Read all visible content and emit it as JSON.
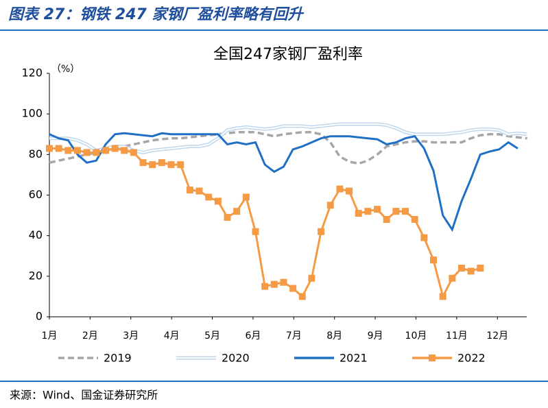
{
  "header": {
    "title": "图表 27：钢铁 247 家钢厂盈利率略有回升"
  },
  "chart_data": {
    "type": "line",
    "title": "全国247家钢厂盈利率",
    "y_label": "（%）",
    "x": [
      1,
      1.23,
      1.46,
      1.69,
      1.92,
      2.15,
      2.38,
      2.61,
      2.84,
      3.07,
      3.3,
      3.53,
      3.76,
      3.99,
      4.22,
      4.45,
      4.68,
      4.91,
      5.14,
      5.37,
      5.6,
      5.83,
      6.06,
      6.29,
      6.52,
      6.75,
      6.98,
      7.21,
      7.44,
      7.67,
      7.9,
      8.13,
      8.36,
      8.59,
      8.82,
      9.05,
      9.28,
      9.51,
      9.74,
      9.97,
      10.2,
      10.43,
      10.66,
      10.89,
      11.12,
      11.35,
      11.58,
      11.81,
      12.04,
      12.27,
      12.5,
      12.73
    ],
    "series": [
      {
        "name": "2019",
        "color": "#a6a6a6",
        "style": "dashed",
        "values": [
          76,
          77,
          78,
          79,
          80,
          81,
          82,
          83,
          84,
          85,
          86,
          87,
          87.5,
          88,
          88,
          88.5,
          89,
          89.5,
          90,
          90.5,
          91,
          91,
          91,
          90,
          89,
          90,
          90.5,
          91,
          91,
          90,
          86,
          79,
          76.5,
          75.5,
          77,
          80,
          84,
          85,
          86,
          86.5,
          86.5,
          86,
          86,
          86,
          86,
          88,
          89.5,
          90,
          90,
          89,
          88.5,
          88
        ]
      },
      {
        "name": "2020",
        "color": "#bdd7ee",
        "style": "double",
        "values": [
          88,
          88,
          88,
          87,
          85,
          82,
          83,
          84,
          84,
          82,
          81,
          82,
          82.5,
          83,
          83.5,
          84,
          84,
          85,
          88,
          92,
          93,
          93.5,
          93,
          92.5,
          93,
          94,
          94,
          94,
          93.5,
          94,
          94.5,
          95,
          95,
          95,
          95,
          95,
          94.5,
          93,
          91,
          90,
          90,
          90,
          90,
          90.5,
          91,
          92,
          92.5,
          92.5,
          92,
          90,
          90.5,
          90
        ]
      },
      {
        "name": "2021",
        "color": "#1f6fc5",
        "style": "solid",
        "values": [
          90,
          88,
          87,
          80,
          76,
          77,
          85,
          90,
          90.5,
          90,
          89.5,
          89,
          90.5,
          90,
          90,
          90,
          90,
          90,
          90,
          85,
          86,
          85,
          86,
          75,
          71.5,
          74,
          82.5,
          84,
          86,
          88,
          89,
          89,
          89,
          88.5,
          88,
          87.5,
          85,
          86,
          88,
          89,
          83,
          72,
          50,
          43,
          57,
          68,
          80,
          81.5,
          82.5,
          86,
          83,
          null
        ]
      },
      {
        "name": "2022",
        "color": "#f59a45",
        "style": "solid",
        "marker": "square",
        "values": [
          83,
          83,
          82,
          82,
          81,
          81,
          82,
          83,
          82,
          81,
          76,
          75,
          76,
          75,
          75,
          62.5,
          62,
          59,
          57,
          49,
          52,
          59,
          42,
          15,
          16,
          17,
          14,
          10,
          19,
          42,
          55,
          63,
          62,
          51,
          52,
          53,
          48,
          52,
          52,
          48,
          39,
          28,
          10,
          19,
          24,
          22.5,
          24,
          null,
          null,
          null,
          null,
          null
        ]
      }
    ],
    "xlim": [
      1,
      12.72
    ],
    "xticks": [
      {
        "value": 1,
        "label": "1月"
      },
      {
        "value": 2,
        "label": "2月"
      },
      {
        "value": 3,
        "label": "3月"
      },
      {
        "value": 4,
        "label": "4月"
      },
      {
        "value": 5,
        "label": "5月"
      },
      {
        "value": 6,
        "label": "6月"
      },
      {
        "value": 7,
        "label": "7月"
      },
      {
        "value": 8,
        "label": "8月"
      },
      {
        "value": 9,
        "label": "9月"
      },
      {
        "value": 10,
        "label": "10月"
      },
      {
        "value": 11,
        "label": "11月"
      },
      {
        "value": 12,
        "label": "12月"
      }
    ],
    "ylim": [
      0,
      120
    ],
    "yticks": [
      0,
      20,
      40,
      60,
      80,
      100,
      120
    ],
    "grid": false,
    "legend": "bottom"
  },
  "footer": {
    "source": "来源：Wind、国金证券研究所"
  }
}
